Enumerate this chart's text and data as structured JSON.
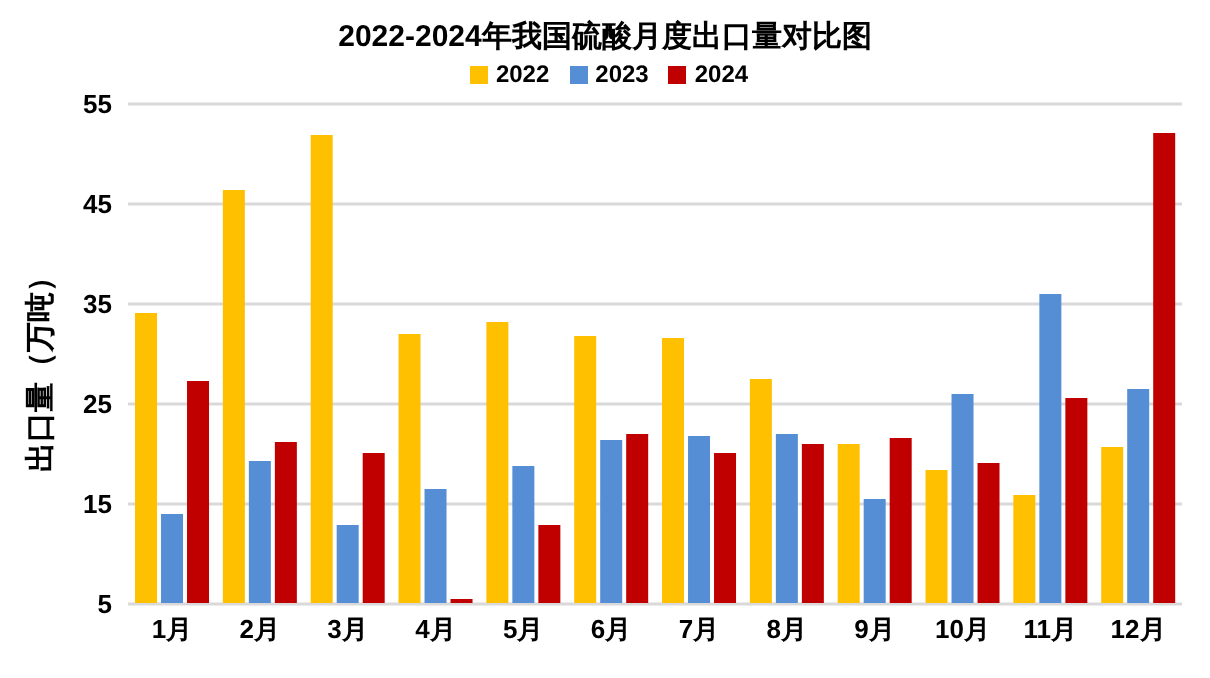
{
  "chart_data": {
    "type": "bar",
    "title": "2022-2024年我国硫酸月度出口量对比图",
    "ylabel": "出口量（万吨）",
    "categories": [
      "1月",
      "2月",
      "3月",
      "4月",
      "5月",
      "6月",
      "7月",
      "8月",
      "9月",
      "10月",
      "11月",
      "12月"
    ],
    "series": [
      {
        "name": "2022",
        "color": "#ffc000",
        "values": [
          34.1,
          46.4,
          51.9,
          32.0,
          33.2,
          31.8,
          31.6,
          27.5,
          21.0,
          18.4,
          15.9,
          20.7
        ]
      },
      {
        "name": "2023",
        "color": "#558ed5",
        "values": [
          14.0,
          19.3,
          12.9,
          16.5,
          18.8,
          21.4,
          21.8,
          22.0,
          15.5,
          26.0,
          36.0,
          26.5
        ]
      },
      {
        "name": "2024",
        "color": "#c00000",
        "values": [
          27.3,
          21.2,
          20.1,
          5.5,
          12.9,
          22.0,
          20.1,
          21.0,
          21.6,
          19.1,
          25.6,
          52.1
        ]
      }
    ],
    "ylim": [
      5,
      55
    ],
    "yticks": [
      5,
      15,
      25,
      35,
      45,
      55
    ],
    "grid": "y",
    "legend": "top"
  }
}
